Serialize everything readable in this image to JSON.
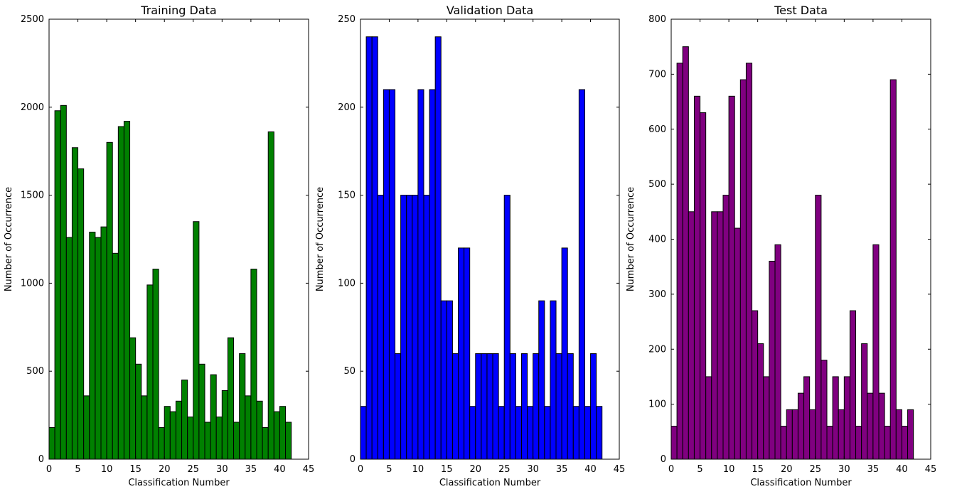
{
  "chart_data": [
    {
      "type": "bar",
      "title": "Training Data",
      "xlabel": "Classification Number",
      "ylabel": "Number of Occurrence",
      "color": "#008000",
      "xlim": [
        0,
        45
      ],
      "ylim": [
        0,
        2500
      ],
      "xticks": [
        0,
        5,
        10,
        15,
        20,
        25,
        30,
        35,
        40,
        45
      ],
      "yticks": [
        0,
        500,
        1000,
        1500,
        2000,
        2500
      ],
      "categories": [
        0,
        1,
        2,
        3,
        4,
        5,
        6,
        7,
        8,
        9,
        10,
        11,
        12,
        13,
        14,
        15,
        16,
        17,
        18,
        19,
        20,
        21,
        22,
        23,
        24,
        25,
        26,
        27,
        28,
        29,
        30,
        31,
        32,
        33,
        34,
        35,
        36,
        37,
        38,
        39,
        40,
        41
      ],
      "values": [
        180,
        1980,
        2010,
        1260,
        1770,
        1650,
        360,
        1290,
        1260,
        1320,
        1800,
        1170,
        1890,
        1920,
        690,
        540,
        360,
        990,
        1080,
        180,
        300,
        270,
        330,
        450,
        240,
        1350,
        540,
        210,
        480,
        240,
        390,
        690,
        210,
        600,
        360,
        1080,
        330,
        180,
        1860,
        270,
        300,
        210
      ]
    },
    {
      "type": "bar",
      "title": "Validation Data",
      "xlabel": "Classification Number",
      "ylabel": "Number of Occurrence",
      "color": "#0000ff",
      "xlim": [
        0,
        45
      ],
      "ylim": [
        0,
        250
      ],
      "xticks": [
        0,
        5,
        10,
        15,
        20,
        25,
        30,
        35,
        40,
        45
      ],
      "yticks": [
        0,
        50,
        100,
        150,
        200,
        250
      ],
      "categories": [
        0,
        1,
        2,
        3,
        4,
        5,
        6,
        7,
        8,
        9,
        10,
        11,
        12,
        13,
        14,
        15,
        16,
        17,
        18,
        19,
        20,
        21,
        22,
        23,
        24,
        25,
        26,
        27,
        28,
        29,
        30,
        31,
        32,
        33,
        34,
        35,
        36,
        37,
        38,
        39,
        40,
        41
      ],
      "values": [
        30,
        240,
        240,
        150,
        210,
        210,
        60,
        150,
        150,
        150,
        210,
        150,
        210,
        240,
        90,
        90,
        60,
        120,
        120,
        30,
        60,
        60,
        60,
        60,
        30,
        150,
        60,
        30,
        60,
        30,
        60,
        90,
        30,
        90,
        60,
        120,
        60,
        30,
        210,
        30,
        60,
        30
      ]
    },
    {
      "type": "bar",
      "title": "Test Data",
      "xlabel": "Classification Number",
      "ylabel": "Number of Occurrence",
      "color": "#800080",
      "xlim": [
        0,
        45
      ],
      "ylim": [
        0,
        800
      ],
      "xticks": [
        0,
        5,
        10,
        15,
        20,
        25,
        30,
        35,
        40,
        45
      ],
      "yticks": [
        0,
        100,
        200,
        300,
        400,
        500,
        600,
        700,
        800
      ],
      "categories": [
        0,
        1,
        2,
        3,
        4,
        5,
        6,
        7,
        8,
        9,
        10,
        11,
        12,
        13,
        14,
        15,
        16,
        17,
        18,
        19,
        20,
        21,
        22,
        23,
        24,
        25,
        26,
        27,
        28,
        29,
        30,
        31,
        32,
        33,
        34,
        35,
        36,
        37,
        38,
        39,
        40,
        41
      ],
      "values": [
        60,
        720,
        750,
        450,
        660,
        630,
        150,
        450,
        450,
        480,
        660,
        420,
        690,
        720,
        270,
        210,
        150,
        360,
        390,
        60,
        90,
        90,
        120,
        150,
        90,
        480,
        180,
        60,
        150,
        90,
        150,
        270,
        60,
        210,
        120,
        390,
        120,
        60,
        690,
        90,
        60,
        90
      ]
    }
  ]
}
